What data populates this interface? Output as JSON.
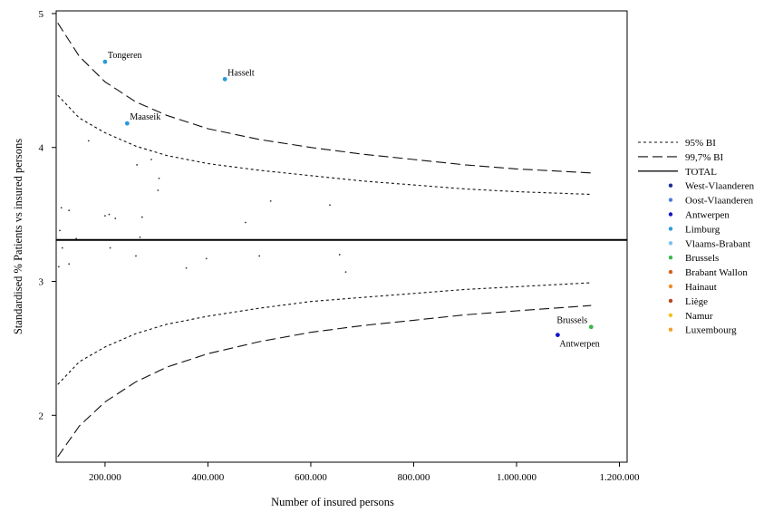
{
  "chart_data": {
    "type": "scatter",
    "xlabel": "Number of insured persons",
    "ylabel": "Standardised % Patients vs insured persons",
    "xlim": [
      105000,
      1215000
    ],
    "ylim": [
      1.65,
      5.02
    ],
    "x_ticks": [
      200000,
      400000,
      600000,
      800000,
      1000000,
      1200000
    ],
    "x_tick_labels": [
      "200.000",
      "400.000",
      "600.000",
      "800.000",
      "1.000.000",
      "1.200.000"
    ],
    "y_ticks": [
      2,
      3,
      4,
      5
    ],
    "y_tick_labels": [
      "2",
      "3",
      "4",
      "5"
    ],
    "grid": false,
    "legend_position": "right",
    "total": 3.31,
    "lines": [
      {
        "name": "95% BI",
        "style": "dotted",
        "upper": [
          [
            108000,
            4.39
          ],
          [
            150000,
            4.22
          ],
          [
            200000,
            4.11
          ],
          [
            260000,
            4.01
          ],
          [
            320000,
            3.94
          ],
          [
            400000,
            3.88
          ],
          [
            500000,
            3.83
          ],
          [
            600000,
            3.79
          ],
          [
            700000,
            3.75
          ],
          [
            800000,
            3.72
          ],
          [
            900000,
            3.69
          ],
          [
            1000000,
            3.67
          ],
          [
            1145000,
            3.65
          ]
        ],
        "lower": [
          [
            108000,
            2.23
          ],
          [
            150000,
            2.4
          ],
          [
            200000,
            2.51
          ],
          [
            260000,
            2.61
          ],
          [
            320000,
            2.68
          ],
          [
            400000,
            2.74
          ],
          [
            500000,
            2.8
          ],
          [
            600000,
            2.85
          ],
          [
            700000,
            2.88
          ],
          [
            800000,
            2.91
          ],
          [
            900000,
            2.94
          ],
          [
            1000000,
            2.96
          ],
          [
            1145000,
            2.99
          ]
        ]
      },
      {
        "name": "99,7% BI",
        "style": "dashed",
        "upper": [
          [
            108000,
            4.93
          ],
          [
            150000,
            4.68
          ],
          [
            200000,
            4.49
          ],
          [
            260000,
            4.34
          ],
          [
            320000,
            4.24
          ],
          [
            400000,
            4.14
          ],
          [
            500000,
            4.06
          ],
          [
            600000,
            4.0
          ],
          [
            700000,
            3.95
          ],
          [
            800000,
            3.91
          ],
          [
            900000,
            3.87
          ],
          [
            1000000,
            3.84
          ],
          [
            1145000,
            3.81
          ]
        ],
        "lower": [
          [
            108000,
            1.69
          ],
          [
            150000,
            1.92
          ],
          [
            200000,
            2.1
          ],
          [
            260000,
            2.25
          ],
          [
            320000,
            2.36
          ],
          [
            400000,
            2.46
          ],
          [
            500000,
            2.55
          ],
          [
            600000,
            2.62
          ],
          [
            700000,
            2.67
          ],
          [
            800000,
            2.71
          ],
          [
            900000,
            2.75
          ],
          [
            1000000,
            2.78
          ],
          [
            1145000,
            2.82
          ]
        ]
      },
      {
        "name": "TOTAL",
        "style": "solid"
      }
    ],
    "legend": [
      {
        "name": "95% BI",
        "kind": "dotted-line"
      },
      {
        "name": "99,7% BI",
        "kind": "dashed-line"
      },
      {
        "name": "TOTAL",
        "kind": "solid-line"
      },
      {
        "name": "West-Vlaanderen",
        "kind": "dot",
        "color": "#1f2f8f"
      },
      {
        "name": "Oost-Vlaanderen",
        "kind": "dot",
        "color": "#4a7fd9"
      },
      {
        "name": "Antwerpen",
        "kind": "dot",
        "color": "#1414c8"
      },
      {
        "name": "Limburg",
        "kind": "dot",
        "color": "#2b9bd8"
      },
      {
        "name": "Vlaams-Brabant",
        "kind": "dot",
        "color": "#7cc2ee"
      },
      {
        "name": "Brussels",
        "kind": "dot",
        "color": "#3cb84a"
      },
      {
        "name": "Brabant Wallon",
        "kind": "dot",
        "color": "#d8601e"
      },
      {
        "name": "Hainaut",
        "kind": "dot",
        "color": "#ef8b2c"
      },
      {
        "name": "Liège",
        "kind": "dot",
        "color": "#b5481c"
      },
      {
        "name": "Namur",
        "kind": "dot",
        "color": "#f2c21a"
      },
      {
        "name": "Luxembourg",
        "kind": "dot",
        "color": "#f0a030"
      }
    ],
    "labeled_points": [
      {
        "label": "Tongeren",
        "x": 200000,
        "y": 4.64,
        "color": "#2b9bd8",
        "anchor": "start"
      },
      {
        "label": "Hasselt",
        "x": 433000,
        "y": 4.51,
        "color": "#2b9bd8",
        "anchor": "start"
      },
      {
        "label": "Maaseik",
        "x": 243000,
        "y": 4.18,
        "color": "#2b9bd8",
        "anchor": "start"
      },
      {
        "label": "Brussels",
        "x": 1145000,
        "y": 2.66,
        "color": "#3cb84a",
        "anchor": "end-above"
      },
      {
        "label": "Antwerpen",
        "x": 1080000,
        "y": 2.6,
        "color": "#1414c8",
        "anchor": "start-below"
      }
    ],
    "small_points": [
      [
        115000,
        3.55
      ],
      [
        130000,
        3.53
      ],
      [
        168000,
        4.05
      ],
      [
        200000,
        3.49
      ],
      [
        208000,
        3.5
      ],
      [
        220000,
        3.47
      ],
      [
        262000,
        3.87
      ],
      [
        272000,
        3.48
      ],
      [
        290000,
        3.91
      ],
      [
        305000,
        3.77
      ],
      [
        303000,
        3.68
      ],
      [
        473000,
        3.44
      ],
      [
        522000,
        3.6
      ],
      [
        637000,
        3.57
      ],
      [
        112000,
        3.38
      ],
      [
        117000,
        3.25
      ],
      [
        130000,
        3.13
      ],
      [
        144000,
        3.32
      ],
      [
        110000,
        3.11
      ],
      [
        210000,
        3.25
      ],
      [
        260000,
        3.19
      ],
      [
        268000,
        3.33
      ],
      [
        358000,
        3.1
      ],
      [
        397000,
        3.17
      ],
      [
        500000,
        3.19
      ],
      [
        656000,
        3.2
      ],
      [
        668000,
        3.07
      ]
    ]
  }
}
